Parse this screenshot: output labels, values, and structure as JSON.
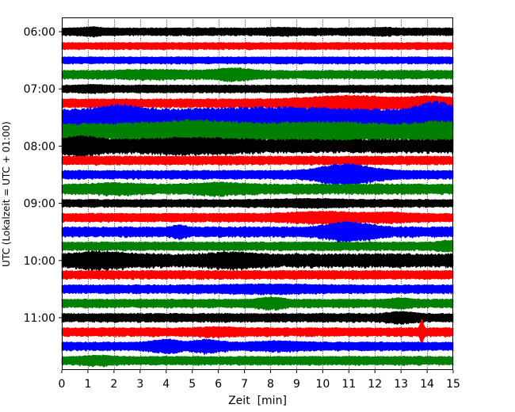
{
  "chart_data": {
    "type": "line",
    "title": "",
    "xlabel": "Zeit  [min]",
    "ylabel": "UTC (Lokalzeit = UTC + 01:00)",
    "xlim": [
      0,
      15
    ],
    "x_ticks": [
      0,
      1,
      2,
      3,
      4,
      5,
      6,
      7,
      8,
      9,
      10,
      11,
      12,
      13,
      14,
      15
    ],
    "x_tick_labels": [
      "0",
      "1",
      "2",
      "3",
      "4",
      "5",
      "6",
      "7",
      "8",
      "9",
      "10",
      "11",
      "12",
      "13",
      "14",
      "15"
    ],
    "y_tick_labels": [
      "06:00",
      "07:00",
      "08:00",
      "09:00",
      "10:00",
      "11:00"
    ],
    "grid": "vertical dotted at each minute",
    "legend": "none",
    "trace_color_cycle": [
      "#000000",
      "#ff0000",
      "#0000ff",
      "#008000"
    ],
    "traces": [
      {
        "start": "06:00",
        "color": "#000000",
        "amplitude": 0.25,
        "bursts": [
          {
            "t": 1.2,
            "a": 0.15,
            "w": 0.5
          },
          {
            "t": 8.5,
            "a": 0.1,
            "w": 0.6
          },
          {
            "t": 12.3,
            "a": 0.1,
            "w": 0.5
          }
        ]
      },
      {
        "start": "06:15",
        "color": "#ff0000",
        "amplitude": 0.2,
        "bursts": []
      },
      {
        "start": "06:30",
        "color": "#0000ff",
        "amplitude": 0.2,
        "bursts": []
      },
      {
        "start": "06:45",
        "color": "#008000",
        "amplitude": 0.3,
        "bursts": [
          {
            "t": 6.6,
            "a": 0.35,
            "w": 0.8
          },
          {
            "t": 3.5,
            "a": 0.15,
            "w": 1.5
          }
        ]
      },
      {
        "start": "07:00",
        "color": "#000000",
        "amplitude": 0.25,
        "bursts": [
          {
            "t": 1.2,
            "a": 0.1,
            "w": 0.5
          }
        ]
      },
      {
        "start": "07:15",
        "color": "#ff0000",
        "amplitude": 0.3,
        "bursts": [
          {
            "t": 11.0,
            "a": 0.5,
            "w": 2.0
          },
          {
            "t": 14.2,
            "a": 0.4,
            "w": 1.0
          }
        ]
      },
      {
        "start": "07:30",
        "color": "#0000ff",
        "amplitude": 0.8,
        "bursts": [
          {
            "t": 2.2,
            "a": 0.6,
            "w": 1.0
          },
          {
            "t": 14.3,
            "a": 1.0,
            "w": 0.8
          },
          {
            "t": 8.0,
            "a": 0.3,
            "w": 3.0
          }
        ]
      },
      {
        "start": "07:45",
        "color": "#008000",
        "amplitude": 0.8,
        "bursts": [
          {
            "t": 5.0,
            "a": 0.5,
            "w": 2.0
          },
          {
            "t": 10.0,
            "a": 0.3,
            "w": 2.0
          },
          {
            "t": 14.5,
            "a": 0.4,
            "w": 0.8
          }
        ]
      },
      {
        "start": "08:00",
        "color": "#000000",
        "amplitude": 0.6,
        "bursts": [
          {
            "t": 0.8,
            "a": 0.5,
            "w": 0.8
          },
          {
            "t": 5.0,
            "a": 0.3,
            "w": 2.0
          }
        ]
      },
      {
        "start": "08:15",
        "color": "#ff0000",
        "amplitude": 0.3,
        "bursts": []
      },
      {
        "start": "08:30",
        "color": "#0000ff",
        "amplitude": 0.3,
        "bursts": [
          {
            "t": 10.9,
            "a": 0.9,
            "w": 1.2
          }
        ]
      },
      {
        "start": "08:45",
        "color": "#008000",
        "amplitude": 0.4,
        "bursts": [
          {
            "t": 6.0,
            "a": 0.3,
            "w": 1.0
          },
          {
            "t": 2.0,
            "a": 0.2,
            "w": 1.0
          }
        ]
      },
      {
        "start": "09:00",
        "color": "#000000",
        "amplitude": 0.25,
        "bursts": [
          {
            "t": 9.5,
            "a": 0.15,
            "w": 1.5
          }
        ]
      },
      {
        "start": "09:15",
        "color": "#ff0000",
        "amplitude": 0.3,
        "bursts": [
          {
            "t": 10.0,
            "a": 0.3,
            "w": 1.5
          },
          {
            "t": 12.5,
            "a": 0.2,
            "w": 0.8
          }
        ]
      },
      {
        "start": "09:30",
        "color": "#0000ff",
        "amplitude": 0.4,
        "bursts": [
          {
            "t": 11.0,
            "a": 0.7,
            "w": 1.0
          },
          {
            "t": 4.5,
            "a": 0.3,
            "w": 0.3
          }
        ]
      },
      {
        "start": "09:45",
        "color": "#008000",
        "amplitude": 0.3,
        "bursts": [
          {
            "t": 14.8,
            "a": 0.3,
            "w": 0.4
          }
        ]
      },
      {
        "start": "10:00",
        "color": "#000000",
        "amplitude": 0.6,
        "bursts": [
          {
            "t": 1.5,
            "a": 0.4,
            "w": 1.2
          },
          {
            "t": 6.5,
            "a": 0.3,
            "w": 1.0
          }
        ]
      },
      {
        "start": "10:15",
        "color": "#ff0000",
        "amplitude": 0.3,
        "bursts": []
      },
      {
        "start": "10:30",
        "color": "#0000ff",
        "amplitude": 0.3,
        "bursts": [
          {
            "t": 8.0,
            "a": 0.15,
            "w": 2.0
          }
        ]
      },
      {
        "start": "10:45",
        "color": "#008000",
        "amplitude": 0.3,
        "bursts": [
          {
            "t": 8.0,
            "a": 0.3,
            "w": 0.6
          },
          {
            "t": 13.0,
            "a": 0.2,
            "w": 0.5
          }
        ]
      },
      {
        "start": "11:00",
        "color": "#000000",
        "amplitude": 0.3,
        "bursts": [
          {
            "t": 13.0,
            "a": 0.3,
            "w": 0.6
          }
        ]
      },
      {
        "start": "11:15",
        "color": "#ff0000",
        "amplitude": 0.3,
        "bursts": [
          {
            "t": 13.8,
            "a": 1.2,
            "w": 0.08
          },
          {
            "t": 6.0,
            "a": 0.15,
            "w": 1.0
          }
        ]
      },
      {
        "start": "11:30",
        "color": "#0000ff",
        "amplitude": 0.3,
        "bursts": [
          {
            "t": 4.0,
            "a": 0.4,
            "w": 0.7
          },
          {
            "t": 5.6,
            "a": 0.4,
            "w": 0.6
          },
          {
            "t": 8.3,
            "a": 0.2,
            "w": 1.0
          }
        ]
      },
      {
        "start": "11:45",
        "color": "#008000",
        "amplitude": 0.3,
        "bursts": [
          {
            "t": 1.5,
            "a": 0.2,
            "w": 0.6
          }
        ]
      }
    ]
  }
}
